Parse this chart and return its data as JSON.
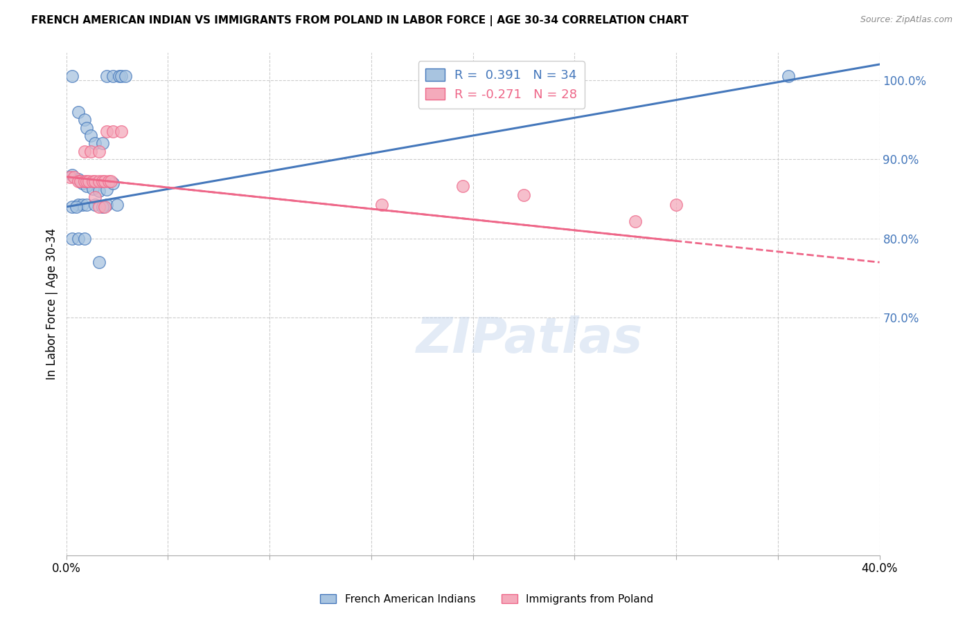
{
  "title": "FRENCH AMERICAN INDIAN VS IMMIGRANTS FROM POLAND IN LABOR FORCE | AGE 30-34 CORRELATION CHART",
  "source_text": "Source: ZipAtlas.com",
  "ylabel": "In Labor Force | Age 30-34",
  "r_blue": 0.391,
  "n_blue": 34,
  "r_pink": -0.271,
  "n_pink": 28,
  "blue_color": "#A8C4E0",
  "pink_color": "#F4AABB",
  "blue_line_color": "#4477BB",
  "pink_line_color": "#EE6688",
  "right_axis_color": "#4477BB",
  "watermark": "ZIPatlas",
  "xmin": 0.0,
  "xmax": 0.4,
  "ymin": 0.4,
  "ymax": 1.035,
  "right_yticks": [
    1.0,
    0.9,
    0.8,
    0.7
  ],
  "right_yticklabels": [
    "100.0%",
    "90.0%",
    "80.0%",
    "70.0%"
  ],
  "xtick_positions": [
    0.0,
    0.05,
    0.1,
    0.15,
    0.2,
    0.25,
    0.3,
    0.35,
    0.4
  ],
  "blue_scatter_x": [
    0.003,
    0.02,
    0.023,
    0.026,
    0.027,
    0.029,
    0.006,
    0.009,
    0.01,
    0.012,
    0.014,
    0.018,
    0.003,
    0.006,
    0.008,
    0.01,
    0.013,
    0.016,
    0.02,
    0.023,
    0.006,
    0.008,
    0.01,
    0.014,
    0.02,
    0.025,
    0.003,
    0.006,
    0.009,
    0.016,
    0.003,
    0.005,
    0.018,
    0.355
  ],
  "blue_scatter_y": [
    1.005,
    1.005,
    1.005,
    1.005,
    1.005,
    1.005,
    0.96,
    0.95,
    0.94,
    0.93,
    0.92,
    0.92,
    0.88,
    0.875,
    0.87,
    0.866,
    0.863,
    0.86,
    0.862,
    0.87,
    0.843,
    0.843,
    0.843,
    0.843,
    0.843,
    0.843,
    0.8,
    0.8,
    0.8,
    0.77,
    0.84,
    0.84,
    0.84,
    1.005
  ],
  "pink_scatter_x": [
    0.002,
    0.004,
    0.006,
    0.007,
    0.009,
    0.01,
    0.011,
    0.013,
    0.014,
    0.016,
    0.018,
    0.019,
    0.021,
    0.022,
    0.009,
    0.012,
    0.016,
    0.02,
    0.023,
    0.027,
    0.014,
    0.016,
    0.019,
    0.195,
    0.225,
    0.155,
    0.28,
    0.3
  ],
  "pink_scatter_y": [
    0.878,
    0.878,
    0.872,
    0.872,
    0.872,
    0.872,
    0.872,
    0.872,
    0.872,
    0.872,
    0.872,
    0.872,
    0.872,
    0.872,
    0.91,
    0.91,
    0.91,
    0.935,
    0.935,
    0.935,
    0.852,
    0.84,
    0.84,
    0.866,
    0.855,
    0.843,
    0.822,
    0.843
  ],
  "blue_line_x": [
    0.0,
    0.4
  ],
  "blue_line_y": [
    0.84,
    1.02
  ],
  "pink_line_x": [
    0.0,
    0.4
  ],
  "pink_line_y": [
    0.878,
    0.77
  ],
  "background_color": "#FFFFFF",
  "grid_color": "#CCCCCC"
}
